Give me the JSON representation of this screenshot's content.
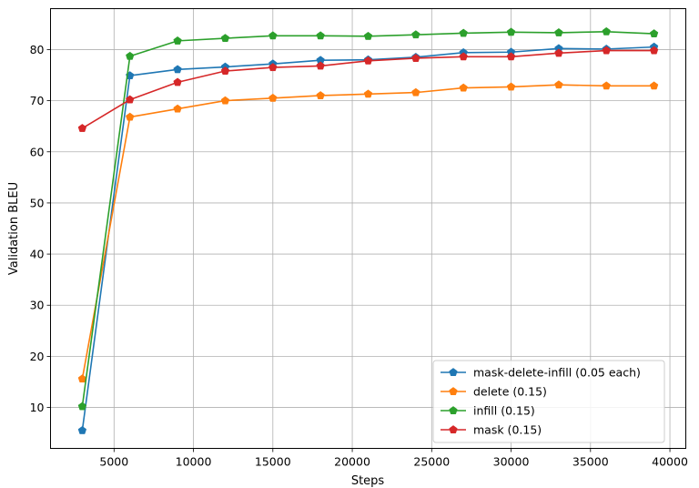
{
  "chart_data": {
    "type": "line",
    "title": "",
    "xlabel": "Steps",
    "ylabel": "Validation BLEU",
    "xlim": [
      1000,
      41000
    ],
    "ylim": [
      2,
      88
    ],
    "xticks": [
      5000,
      10000,
      15000,
      20000,
      25000,
      30000,
      35000,
      40000
    ],
    "yticks": [
      10,
      20,
      30,
      40,
      50,
      60,
      70,
      80
    ],
    "grid": true,
    "legend_position": "lower-right",
    "x": [
      3000,
      6000,
      9000,
      12000,
      15000,
      18000,
      21000,
      24000,
      27000,
      30000,
      33000,
      36000,
      39000
    ],
    "series": [
      {
        "name": "mask-delete-infill (0.05 each)",
        "color": "#1f77b4",
        "marker": "pentagon",
        "values": [
          5.5,
          74.9,
          76.1,
          76.6,
          77.2,
          77.9,
          78.0,
          78.5,
          79.4,
          79.5,
          80.2,
          80.1,
          80.5
        ]
      },
      {
        "name": "delete (0.15)",
        "color": "#ff7f0e",
        "marker": "pentagon",
        "values": [
          15.6,
          66.8,
          68.4,
          70.0,
          70.5,
          71.0,
          71.3,
          71.6,
          72.5,
          72.7,
          73.1,
          72.9,
          72.9
        ]
      },
      {
        "name": "infill (0.15)",
        "color": "#2ca02c",
        "marker": "pentagon",
        "values": [
          10.2,
          78.7,
          81.7,
          82.2,
          82.7,
          82.7,
          82.6,
          82.9,
          83.2,
          83.4,
          83.3,
          83.5,
          83.1
        ]
      },
      {
        "name": "mask (0.15)",
        "color": "#d62728",
        "marker": "pentagon",
        "values": [
          64.6,
          70.2,
          73.6,
          75.8,
          76.5,
          76.8,
          77.8,
          78.3,
          78.6,
          78.6,
          79.3,
          79.8,
          79.8
        ]
      }
    ]
  }
}
